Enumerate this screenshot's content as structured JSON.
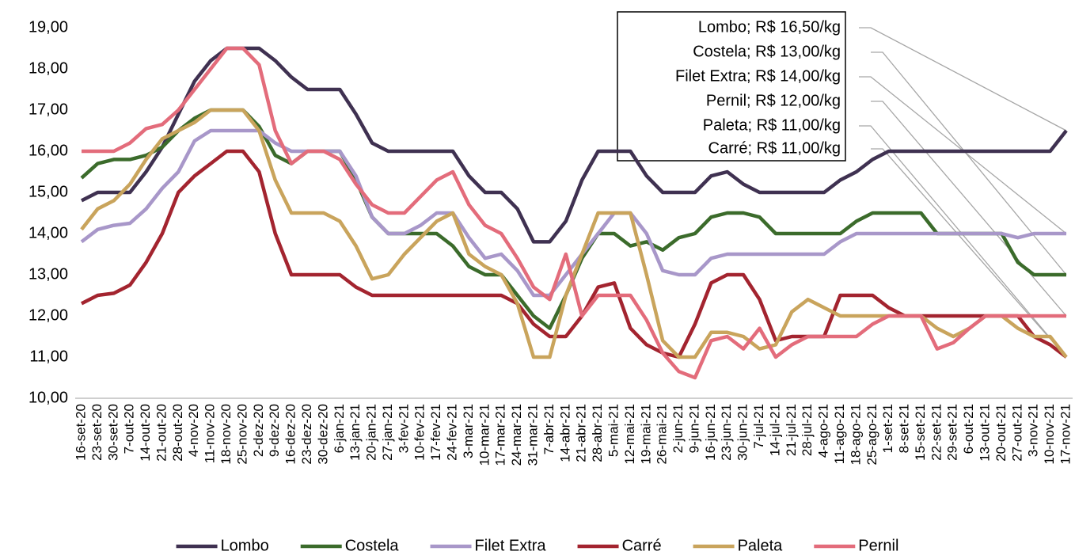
{
  "chart_data": {
    "type": "line",
    "categories": [
      "16-set-20",
      "23-set-20",
      "30-set-20",
      "7-out-20",
      "14-out-20",
      "21-out-20",
      "28-out-20",
      "4-nov-20",
      "11-nov-20",
      "18-nov-20",
      "25-nov-20",
      "2-dez-20",
      "9-dez-20",
      "16-dez-20",
      "23-dez-20",
      "30-dez-20",
      "6-jan-21",
      "13-jan-21",
      "20-jan-21",
      "27-jan-21",
      "3-fev-21",
      "10-fev-21",
      "17-fev-21",
      "24-fev-21",
      "3-mar-21",
      "10-mar-21",
      "17-mar-21",
      "24-mar-21",
      "31-mar-21",
      "7-abr-21",
      "14-abr-21",
      "21-abr-21",
      "28-abr-21",
      "5-mai-21",
      "12-mai-21",
      "19-mai-21",
      "26-mai-21",
      "2-jun-21",
      "9-jun-21",
      "16-jun-21",
      "23-jun-21",
      "30-jun-21",
      "7-jul-21",
      "14-jul-21",
      "21-jul-21",
      "28-jul-21",
      "4-ago-21",
      "11-ago-21",
      "18-ago-21",
      "25-ago-21",
      "1-set-21",
      "8-set-21",
      "15-set-21",
      "22-set-21",
      "29-set-21",
      "6-out-21",
      "13-out-21",
      "20-out-21",
      "27-out-21",
      "3-nov-21",
      "10-nov-21",
      "17-nov-21"
    ],
    "series": [
      {
        "name": "Lombo",
        "color": "#3f3151",
        "values": [
          14.8,
          15,
          15,
          15,
          15.5,
          16.1,
          16.9,
          17.7,
          18.2,
          18.5,
          18.5,
          18.5,
          18.2,
          17.8,
          17.5,
          17.5,
          17.5,
          16.9,
          16.2,
          16,
          16,
          16,
          16,
          16,
          15.4,
          15,
          15,
          14.6,
          13.8,
          13.8,
          14.3,
          15.3,
          16,
          16,
          16,
          15.4,
          15,
          15,
          15,
          15.4,
          15.5,
          15.2,
          15,
          15,
          15,
          15,
          15,
          15.3,
          15.5,
          15.8,
          16,
          16,
          16,
          16,
          16,
          16,
          16,
          16,
          16,
          16,
          16,
          16.5
        ]
      },
      {
        "name": "Costela",
        "color": "#3b6b2b",
        "values": [
          15.35,
          15.7,
          15.8,
          15.8,
          15.9,
          16.1,
          16.5,
          16.8,
          17,
          17,
          17,
          16.6,
          15.9,
          15.7,
          16,
          16,
          16,
          15.3,
          14.4,
          14,
          14,
          14,
          14,
          13.7,
          13.2,
          13,
          13,
          12.5,
          12,
          11.7,
          12.5,
          13.4,
          14,
          14,
          13.7,
          13.8,
          13.6,
          13.9,
          14,
          14.4,
          14.5,
          14.5,
          14.4,
          14,
          14,
          14,
          14,
          14,
          14.3,
          14.5,
          14.5,
          14.5,
          14.5,
          14,
          14,
          14,
          14,
          14,
          13.3,
          13,
          13,
          13
        ]
      },
      {
        "name": "Filet Extra",
        "color": "#a897c9",
        "values": [
          13.8,
          14.1,
          14.2,
          14.25,
          14.6,
          15.1,
          15.5,
          16.25,
          16.5,
          16.5,
          16.5,
          16.5,
          16.2,
          16,
          16,
          16,
          16,
          15.4,
          14.4,
          14,
          14,
          14.2,
          14.5,
          14.5,
          13.9,
          13.4,
          13.5,
          13.1,
          12.5,
          12.5,
          13,
          13.5,
          14,
          14.5,
          14.5,
          14,
          13.1,
          13,
          13,
          13.4,
          13.5,
          13.5,
          13.5,
          13.5,
          13.5,
          13.5,
          13.5,
          13.8,
          14,
          14,
          14,
          14,
          14,
          14,
          14,
          14,
          14,
          14,
          13.9,
          14,
          14,
          14
        ]
      },
      {
        "name": "Carré",
        "color": "#a3242f",
        "values": [
          12.3,
          12.5,
          12.55,
          12.75,
          13.3,
          14,
          15,
          15.4,
          15.7,
          16,
          16,
          15.5,
          14,
          13,
          13,
          13,
          13,
          12.7,
          12.5,
          12.5,
          12.5,
          12.5,
          12.5,
          12.5,
          12.5,
          12.5,
          12.5,
          12.3,
          11.8,
          11.5,
          11.5,
          12,
          12.7,
          12.8,
          11.7,
          11.3,
          11.1,
          11,
          11.8,
          12.8,
          13,
          13,
          12.4,
          11.4,
          11.5,
          11.5,
          11.5,
          12.5,
          12.5,
          12.5,
          12.2,
          12,
          12,
          12,
          12,
          12,
          12,
          12,
          12,
          11.5,
          11.3,
          11
        ]
      },
      {
        "name": "Paleta",
        "color": "#c9a45c",
        "values": [
          14.1,
          14.6,
          14.8,
          15.2,
          15.8,
          16.3,
          16.5,
          16.7,
          17,
          17,
          17,
          16.5,
          15.3,
          14.5,
          14.5,
          14.5,
          14.3,
          13.7,
          12.9,
          13,
          13.5,
          13.9,
          14.3,
          14.5,
          13.5,
          13.2,
          13,
          12.3,
          11,
          11,
          12.5,
          13.5,
          14.5,
          14.5,
          14.5,
          13,
          11.4,
          11,
          11,
          11.6,
          11.6,
          11.5,
          11.2,
          11.3,
          12.1,
          12.4,
          12.2,
          12,
          12,
          12,
          12,
          12,
          12,
          11.7,
          11.5,
          11.7,
          12,
          12,
          11.7,
          11.5,
          11.5,
          11
        ]
      },
      {
        "name": "Pernil",
        "color": "#e36c7b",
        "values": [
          16,
          16,
          16,
          16.2,
          16.55,
          16.65,
          17,
          17.5,
          18,
          18.5,
          18.5,
          18.1,
          16.5,
          15.7,
          16,
          16,
          15.8,
          15.2,
          14.7,
          14.5,
          14.5,
          14.9,
          15.3,
          15.5,
          14.7,
          14.2,
          14,
          13.4,
          12.7,
          12.4,
          13.5,
          12,
          12.5,
          12.5,
          12.5,
          11.9,
          11.1,
          10.65,
          10.5,
          11.4,
          11.5,
          11.2,
          11.7,
          11,
          11.3,
          11.5,
          11.5,
          11.5,
          11.5,
          11.8,
          12,
          12,
          12,
          11.2,
          11.35,
          11.7,
          12,
          12,
          12,
          12,
          12,
          12
        ]
      }
    ],
    "ylim": [
      10,
      19
    ],
    "yticks": [
      {
        "value": 10,
        "label": "10,00"
      },
      {
        "value": 11,
        "label": "11,00"
      },
      {
        "value": 12,
        "label": "12,00"
      },
      {
        "value": 13,
        "label": "13,00"
      },
      {
        "value": 14,
        "label": "14,00"
      },
      {
        "value": 15,
        "label": "15,00"
      },
      {
        "value": 16,
        "label": "16,00"
      },
      {
        "value": 17,
        "label": "17,00"
      },
      {
        "value": 18,
        "label": "18,00"
      },
      {
        "value": 19,
        "label": "19,00"
      }
    ],
    "grid": false,
    "legend": "bottom",
    "annotations": [
      "Lombo; R$ 16,50/kg",
      "Costela; R$ 13,00/kg",
      "Filet Extra; R$ 14,00/kg",
      "Pernil; R$ 12,00/kg",
      "Paleta; R$ 11,00/kg",
      "Carré; R$ 11,00/kg"
    ]
  }
}
